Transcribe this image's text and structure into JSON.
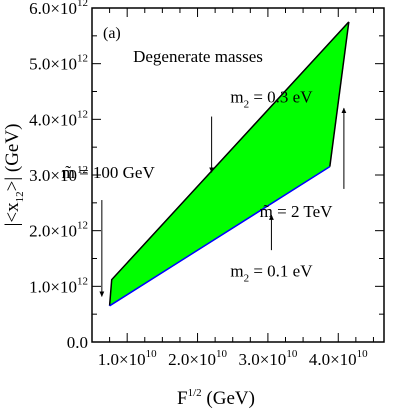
{
  "chart_data": {
    "type": "area",
    "title": "",
    "panel_label": "(a)",
    "subtitle": "Degenerate masses",
    "xlabel": {
      "base": "F",
      "exp": "1/2",
      "unit": " (GeV)"
    },
    "ylabel": {
      "text": "|<x",
      "sub": "12",
      "text2": ">| (GeV)"
    },
    "xlim": [
      5000000000.0,
      46500000000.0
    ],
    "ylim": [
      0,
      6000000000000.0
    ],
    "x_ticks": [
      {
        "value": 10000000000.0,
        "mantissa": "1.0",
        "base": "×10",
        "exp": "10"
      },
      {
        "value": 20000000000.0,
        "mantissa": "2.0",
        "base": "×10",
        "exp": "10"
      },
      {
        "value": 30000000000.0,
        "mantissa": "3.0",
        "base": "×10",
        "exp": "10"
      },
      {
        "value": 40000000000.0,
        "mantissa": "4.0",
        "base": "×10",
        "exp": "10"
      }
    ],
    "y_ticks": [
      {
        "value": 0,
        "mantissa": "0.0",
        "base": "",
        "exp": ""
      },
      {
        "value": 1000000000000.0,
        "mantissa": "1.0",
        "base": "×10",
        "exp": "12"
      },
      {
        "value": 2000000000000.0,
        "mantissa": "2.0",
        "base": "×10",
        "exp": "12"
      },
      {
        "value": 3000000000000.0,
        "mantissa": "3.0",
        "base": "×10",
        "exp": "12"
      },
      {
        "value": 4000000000000.0,
        "mantissa": "4.0",
        "base": "×10",
        "exp": "12"
      },
      {
        "value": 5000000000000.0,
        "mantissa": "5.0",
        "base": "×10",
        "exp": "12"
      },
      {
        "value": 6000000000000.0,
        "mantissa": "6.0",
        "base": "×10",
        "exp": "12"
      }
    ],
    "region": {
      "fill": "#00ff00",
      "upper_boundary": {
        "color": "#000000",
        "points": [
          [
            7500000000.0,
            650000000000.0
          ],
          [
            7800000000.0,
            1120000000000.0
          ],
          [
            41500000000.0,
            5750000000000.0
          ]
        ]
      },
      "right_boundary": {
        "color": "#000000",
        "points": [
          [
            41500000000.0,
            5750000000000.0
          ],
          [
            38800000000.0,
            3150000000000.0
          ]
        ]
      },
      "lower_boundary": {
        "color": "#0000ff",
        "points": [
          [
            7500000000.0,
            650000000000.0
          ],
          [
            38800000000.0,
            3150000000000.0
          ]
        ]
      }
    },
    "annotations": [
      {
        "id": "m2-03",
        "base": "m",
        "sub": "2",
        "rest": " = 0.3 eV",
        "anchor": [
          30500000000.0,
          4300000000000.0
        ],
        "arrow_from": [
          22000000000.0,
          4050000000000.0
        ],
        "arrow_to": [
          22000000000.0,
          3050000000000.0
        ]
      },
      {
        "id": "m2-01",
        "base": "m",
        "sub": "2",
        "rest": " = 0.1 eV",
        "anchor": [
          30500000000.0,
          1180000000000.0
        ],
        "arrow_from": [
          30500000000.0,
          1650000000000.0
        ],
        "arrow_to": [
          30500000000.0,
          2280000000000.0
        ]
      },
      {
        "id": "mtilde-100",
        "text": "m̃ = 100 GeV",
        "anchor": [
          7300000000.0,
          2950000000000.0
        ],
        "arrow_from": [
          6400000000.0,
          2550000000000.0
        ],
        "arrow_to": [
          6400000000.0,
          820000000000.0
        ]
      },
      {
        "id": "mtilde-2",
        "text": "m̃ = 2 TeV",
        "anchor": [
          34000000000.0,
          2250000000000.0
        ],
        "arrow_from": [
          40800000000.0,
          2750000000000.0
        ],
        "arrow_to": [
          40800000000.0,
          4200000000000.0
        ]
      }
    ]
  }
}
